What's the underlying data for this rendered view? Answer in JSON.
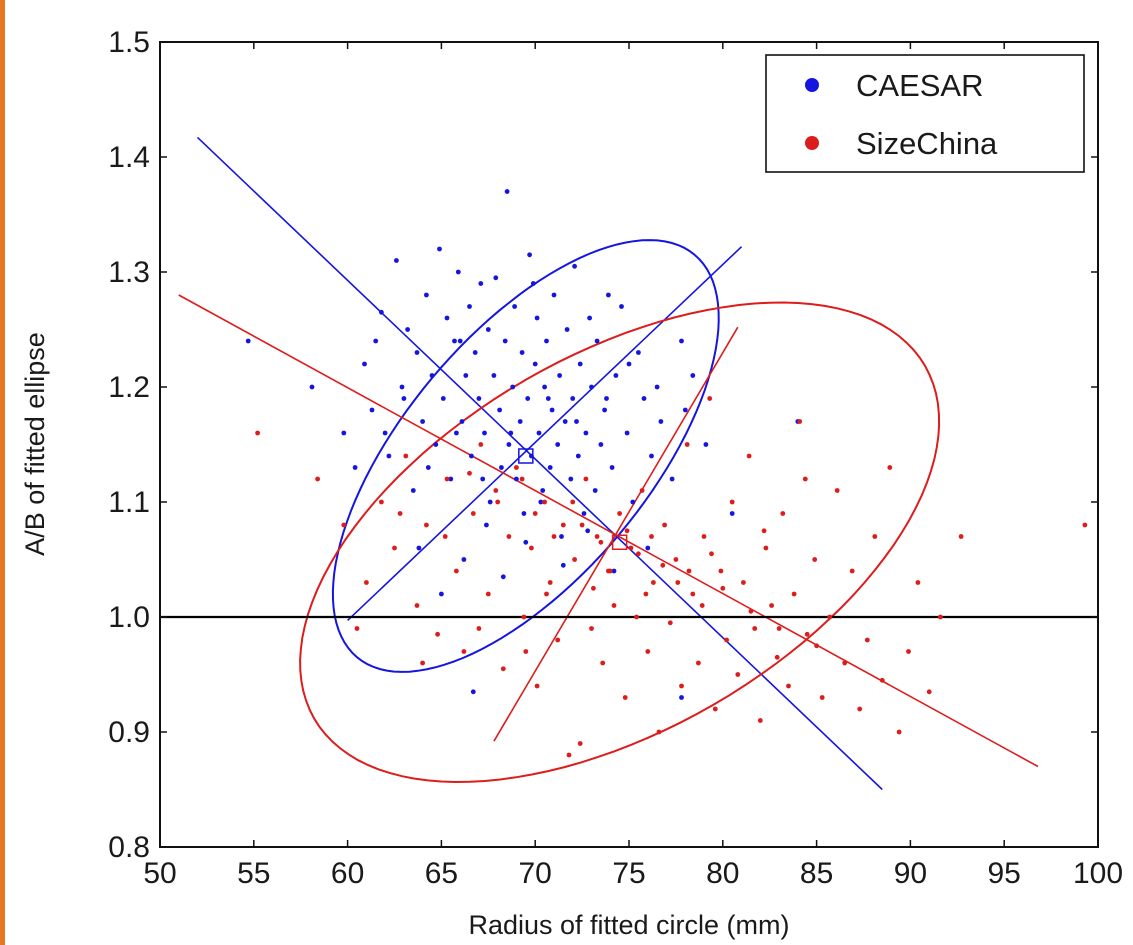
{
  "chart_data": {
    "type": "scatter",
    "title": "",
    "xlabel": "Radius of fitted circle (mm)",
    "ylabel": "A/B of fitted ellipse",
    "xlim": [
      50,
      100
    ],
    "ylim": [
      0.8,
      1.5
    ],
    "xticks": [
      "50",
      "55",
      "60",
      "65",
      "70",
      "75",
      "80",
      "85",
      "90",
      "95",
      "100"
    ],
    "yticks": [
      "0.8",
      "0.9",
      "1.0",
      "1.1",
      "1.2",
      "1.3",
      "1.4",
      "1.5"
    ],
    "legend": {
      "placement": "top-right",
      "entries": [
        "CAESAR",
        "SizeChina"
      ]
    },
    "reference_line": {
      "y": 1.0,
      "color": "#000000"
    },
    "series": [
      {
        "name": "CAESAR",
        "color": "#1515e0",
        "center": [
          69.5,
          1.14
        ],
        "ellipse": {
          "semi_major": 14.0,
          "semi_minor": 6.5,
          "angle_deg": -50
        },
        "axis_lines": [
          {
            "from": [
              52.0,
              1.417
            ],
            "to": [
              88.5,
              0.85
            ]
          },
          {
            "from": [
              60.0,
              0.997
            ],
            "to": [
              81.0,
              1.322
            ]
          }
        ],
        "points": [
          [
            54.7,
            1.24
          ],
          [
            58.1,
            1.2
          ],
          [
            59.8,
            1.16
          ],
          [
            60.4,
            1.13
          ],
          [
            60.9,
            1.22
          ],
          [
            61.3,
            1.18
          ],
          [
            61.8,
            1.265
          ],
          [
            62.2,
            1.14
          ],
          [
            62.6,
            1.31
          ],
          [
            62.9,
            1.2
          ],
          [
            63.2,
            1.25
          ],
          [
            63.5,
            1.11
          ],
          [
            63.7,
            1.23
          ],
          [
            64.0,
            1.17
          ],
          [
            64.2,
            1.28
          ],
          [
            64.5,
            1.21
          ],
          [
            64.7,
            1.15
          ],
          [
            64.9,
            1.32
          ],
          [
            65.1,
            1.19
          ],
          [
            65.3,
            1.26
          ],
          [
            65.5,
            1.12
          ],
          [
            65.7,
            1.24
          ],
          [
            65.9,
            1.3
          ],
          [
            66.1,
            1.17
          ],
          [
            66.3,
            1.21
          ],
          [
            66.5,
            1.27
          ],
          [
            66.6,
            1.14
          ],
          [
            66.8,
            1.23
          ],
          [
            67.0,
            1.19
          ],
          [
            67.1,
            1.29
          ],
          [
            67.3,
            1.16
          ],
          [
            67.5,
            1.25
          ],
          [
            67.6,
            1.1
          ],
          [
            67.8,
            1.21
          ],
          [
            67.9,
            1.295
          ],
          [
            68.1,
            1.18
          ],
          [
            68.2,
            1.13
          ],
          [
            68.4,
            1.24
          ],
          [
            68.5,
            1.37
          ],
          [
            68.6,
            1.15
          ],
          [
            68.8,
            1.2
          ],
          [
            68.9,
            1.27
          ],
          [
            69.0,
            1.12
          ],
          [
            69.2,
            1.17
          ],
          [
            69.3,
            1.23
          ],
          [
            69.4,
            1.09
          ],
          [
            69.6,
            1.19
          ],
          [
            69.7,
            1.315
          ],
          [
            69.8,
            1.14
          ],
          [
            70.0,
            1.22
          ],
          [
            70.1,
            1.26
          ],
          [
            70.2,
            1.16
          ],
          [
            70.4,
            1.11
          ],
          [
            70.5,
            1.2
          ],
          [
            70.6,
            1.24
          ],
          [
            70.8,
            1.13
          ],
          [
            70.9,
            1.18
          ],
          [
            71.0,
            1.28
          ],
          [
            71.2,
            1.15
          ],
          [
            71.3,
            1.21
          ],
          [
            71.4,
            1.07
          ],
          [
            71.6,
            1.17
          ],
          [
            71.7,
            1.25
          ],
          [
            71.9,
            1.12
          ],
          [
            72.0,
            1.19
          ],
          [
            72.1,
            1.305
          ],
          [
            72.3,
            1.14
          ],
          [
            72.4,
            1.22
          ],
          [
            72.6,
            1.09
          ],
          [
            72.7,
            1.16
          ],
          [
            72.9,
            1.26
          ],
          [
            73.0,
            1.2
          ],
          [
            73.2,
            1.11
          ],
          [
            73.3,
            1.24
          ],
          [
            73.5,
            1.15
          ],
          [
            73.7,
            1.18
          ],
          [
            73.9,
            1.28
          ],
          [
            74.1,
            1.13
          ],
          [
            74.3,
            1.21
          ],
          [
            74.6,
            1.27
          ],
          [
            74.9,
            1.16
          ],
          [
            75.2,
            1.1
          ],
          [
            75.5,
            1.23
          ],
          [
            75.8,
            1.19
          ],
          [
            76.2,
            1.14
          ],
          [
            76.7,
            1.17
          ],
          [
            77.3,
            1.12
          ],
          [
            77.8,
            1.24
          ],
          [
            78.4,
            1.21
          ],
          [
            79.1,
            1.15
          ],
          [
            80.5,
            1.09
          ],
          [
            84.0,
            1.17
          ],
          [
            66.7,
            0.935
          ],
          [
            77.8,
            0.93
          ],
          [
            63.8,
            1.06
          ],
          [
            65.0,
            1.02
          ],
          [
            66.2,
            1.05
          ],
          [
            67.4,
            1.08
          ],
          [
            68.3,
            1.035
          ],
          [
            69.5,
            1.065
          ],
          [
            70.3,
            1.1
          ],
          [
            71.5,
            1.045
          ],
          [
            72.8,
            1.075
          ],
          [
            74.2,
            1.04
          ],
          [
            76.0,
            1.06
          ],
          [
            62.0,
            1.16
          ],
          [
            63.0,
            1.19
          ],
          [
            64.3,
            1.13
          ],
          [
            65.8,
            1.16
          ],
          [
            67.2,
            1.12
          ],
          [
            68.7,
            1.16
          ],
          [
            70.7,
            1.19
          ],
          [
            72.2,
            1.17
          ],
          [
            73.8,
            1.19
          ],
          [
            75.0,
            1.22
          ],
          [
            76.5,
            1.2
          ],
          [
            78.0,
            1.18
          ],
          [
            61.5,
            1.24
          ],
          [
            66.0,
            1.24
          ],
          [
            69.9,
            1.29
          ]
        ]
      },
      {
        "name": "SizeChina",
        "color": "#dd1c1c",
        "center": [
          74.5,
          1.065
        ],
        "ellipse": {
          "semi_major": 18.8,
          "semi_minor": 10.0,
          "angle_deg": -30
        },
        "axis_lines": [
          {
            "from": [
              51.0,
              1.28
            ],
            "to": [
              96.8,
              0.87
            ]
          },
          {
            "from": [
              67.8,
              0.892
            ],
            "to": [
              80.8,
              1.252
            ]
          }
        ],
        "points": [
          [
            55.2,
            1.16
          ],
          [
            58.4,
            1.12
          ],
          [
            59.8,
            1.08
          ],
          [
            61.0,
            1.03
          ],
          [
            61.8,
            1.1
          ],
          [
            62.5,
            1.06
          ],
          [
            63.1,
            1.14
          ],
          [
            63.7,
            1.01
          ],
          [
            64.2,
            1.08
          ],
          [
            64.8,
            0.985
          ],
          [
            65.3,
            1.12
          ],
          [
            65.8,
            1.04
          ],
          [
            66.2,
            0.97
          ],
          [
            66.7,
            1.09
          ],
          [
            67.1,
            1.15
          ],
          [
            67.5,
            1.02
          ],
          [
            67.9,
            1.11
          ],
          [
            68.3,
            0.955
          ],
          [
            68.6,
            1.07
          ],
          [
            69.0,
            1.13
          ],
          [
            69.4,
            1.0
          ],
          [
            69.8,
            1.06
          ],
          [
            70.1,
            0.94
          ],
          [
            70.5,
            1.1
          ],
          [
            70.8,
            1.03
          ],
          [
            71.2,
            0.98
          ],
          [
            71.5,
            1.08
          ],
          [
            71.8,
            0.88
          ],
          [
            72.1,
            1.05
          ],
          [
            72.4,
            0.89
          ],
          [
            72.7,
            1.12
          ],
          [
            73.0,
            0.99
          ],
          [
            73.3,
            1.07
          ],
          [
            73.6,
            0.96
          ],
          [
            73.9,
            1.04
          ],
          [
            74.2,
            1.01
          ],
          [
            74.5,
            1.09
          ],
          [
            74.8,
            0.93
          ],
          [
            75.1,
            1.06
          ],
          [
            75.4,
            1.0
          ],
          [
            75.7,
            1.11
          ],
          [
            76.0,
            0.97
          ],
          [
            76.3,
            1.03
          ],
          [
            76.6,
            0.9
          ],
          [
            76.9,
            1.08
          ],
          [
            77.2,
            0.995
          ],
          [
            77.5,
            1.05
          ],
          [
            77.8,
            0.94
          ],
          [
            78.1,
            1.15
          ],
          [
            78.4,
            1.02
          ],
          [
            78.7,
            0.96
          ],
          [
            79.0,
            1.07
          ],
          [
            79.3,
            1.19
          ],
          [
            79.6,
            0.92
          ],
          [
            79.9,
            1.04
          ],
          [
            80.2,
            0.98
          ],
          [
            80.5,
            1.1
          ],
          [
            80.8,
            0.95
          ],
          [
            81.1,
            1.03
          ],
          [
            81.4,
            1.14
          ],
          [
            81.7,
            0.99
          ],
          [
            82.0,
            0.91
          ],
          [
            82.3,
            1.06
          ],
          [
            82.6,
            1.01
          ],
          [
            82.9,
            0.965
          ],
          [
            83.2,
            1.09
          ],
          [
            83.5,
            0.94
          ],
          [
            83.8,
            1.02
          ],
          [
            84.1,
            1.17
          ],
          [
            84.5,
            0.985
          ],
          [
            84.9,
            1.05
          ],
          [
            85.3,
            0.93
          ],
          [
            85.7,
            1.0
          ],
          [
            86.1,
            1.11
          ],
          [
            86.5,
            0.96
          ],
          [
            86.9,
            1.04
          ],
          [
            87.3,
            0.92
          ],
          [
            87.7,
            0.98
          ],
          [
            88.1,
            1.07
          ],
          [
            88.5,
            0.945
          ],
          [
            88.9,
            1.13
          ],
          [
            89.4,
            0.9
          ],
          [
            89.9,
            0.97
          ],
          [
            90.4,
            1.03
          ],
          [
            91.0,
            0.935
          ],
          [
            91.6,
            1.0
          ],
          [
            92.7,
            1.07
          ],
          [
            99.3,
            1.08
          ],
          [
            69.3,
            1.12
          ],
          [
            71.0,
            1.07
          ],
          [
            72.5,
            1.08
          ],
          [
            73.5,
            1.065
          ],
          [
            74.0,
            1.04
          ],
          [
            75.5,
            1.055
          ],
          [
            76.8,
            1.045
          ],
          [
            77.6,
            1.03
          ],
          [
            78.9,
            1.01
          ],
          [
            70.0,
            1.09
          ],
          [
            68.0,
            1.1
          ],
          [
            66.5,
            1.125
          ],
          [
            72.0,
            1.1
          ],
          [
            74.9,
            1.075
          ],
          [
            76.2,
            1.07
          ],
          [
            78.2,
            1.04
          ],
          [
            80.0,
            1.025
          ],
          [
            81.5,
            1.005
          ],
          [
            83.0,
            0.99
          ],
          [
            85.0,
            0.975
          ],
          [
            62.8,
            1.09
          ],
          [
            65.2,
            1.07
          ],
          [
            70.6,
            1.02
          ],
          [
            73.1,
            1.025
          ],
          [
            75.9,
            1.02
          ],
          [
            79.4,
            1.055
          ],
          [
            82.2,
            1.075
          ],
          [
            60.5,
            0.99
          ],
          [
            64.0,
            0.96
          ],
          [
            67.0,
            0.99
          ],
          [
            69.5,
            0.97
          ],
          [
            84.4,
            1.12
          ]
        ]
      }
    ]
  }
}
